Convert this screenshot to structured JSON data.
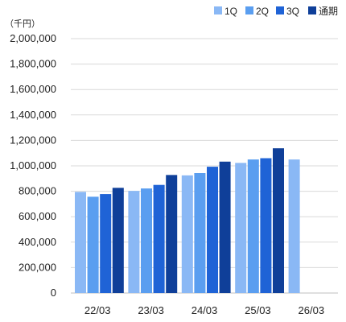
{
  "chart_data": {
    "type": "bar",
    "unit_label": "（千円）",
    "categories": [
      "22/03",
      "23/03",
      "24/03",
      "25/03",
      "26/03"
    ],
    "series": [
      {
        "name": "1Q",
        "color": "#8ab8f5",
        "values": [
          795000,
          803000,
          925000,
          1023000,
          1050000
        ]
      },
      {
        "name": "2Q",
        "color": "#5a9ef0",
        "values": [
          757000,
          822000,
          943000,
          1050000,
          null
        ]
      },
      {
        "name": "3Q",
        "color": "#1f63d6",
        "values": [
          778000,
          850000,
          993000,
          1060000,
          null
        ]
      },
      {
        "name": "通期",
        "color": "#0f3f99",
        "values": [
          827000,
          928000,
          1033000,
          1138000,
          null
        ]
      }
    ],
    "ylim": [
      0,
      2000000
    ],
    "yticks": [
      "0",
      "200,000",
      "400,000",
      "600,000",
      "800,000",
      "1,000,000",
      "1,200,000",
      "1,400,000",
      "1,600,000",
      "1,800,000",
      "2,000,000"
    ],
    "grid": true,
    "legend_position": "top-right"
  }
}
